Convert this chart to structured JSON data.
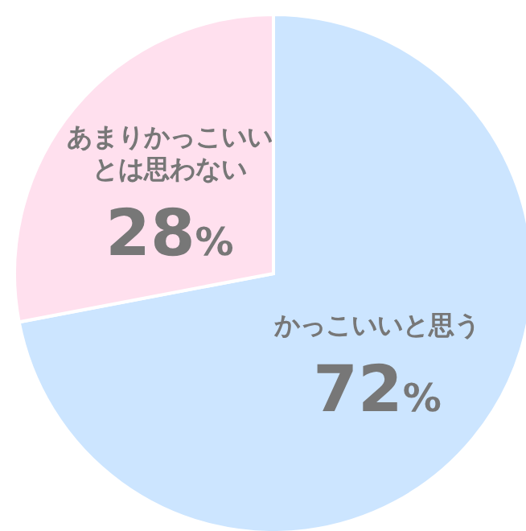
{
  "chart_data": {
    "type": "pie",
    "categories": [
      "かっこいいと思う",
      "あまりかっこいいとは思わない"
    ],
    "values": [
      72,
      28
    ],
    "colors": [
      "#cce5ff",
      "#ffe0ee"
    ],
    "value_labels": [
      "72%",
      "28%"
    ]
  }
}
